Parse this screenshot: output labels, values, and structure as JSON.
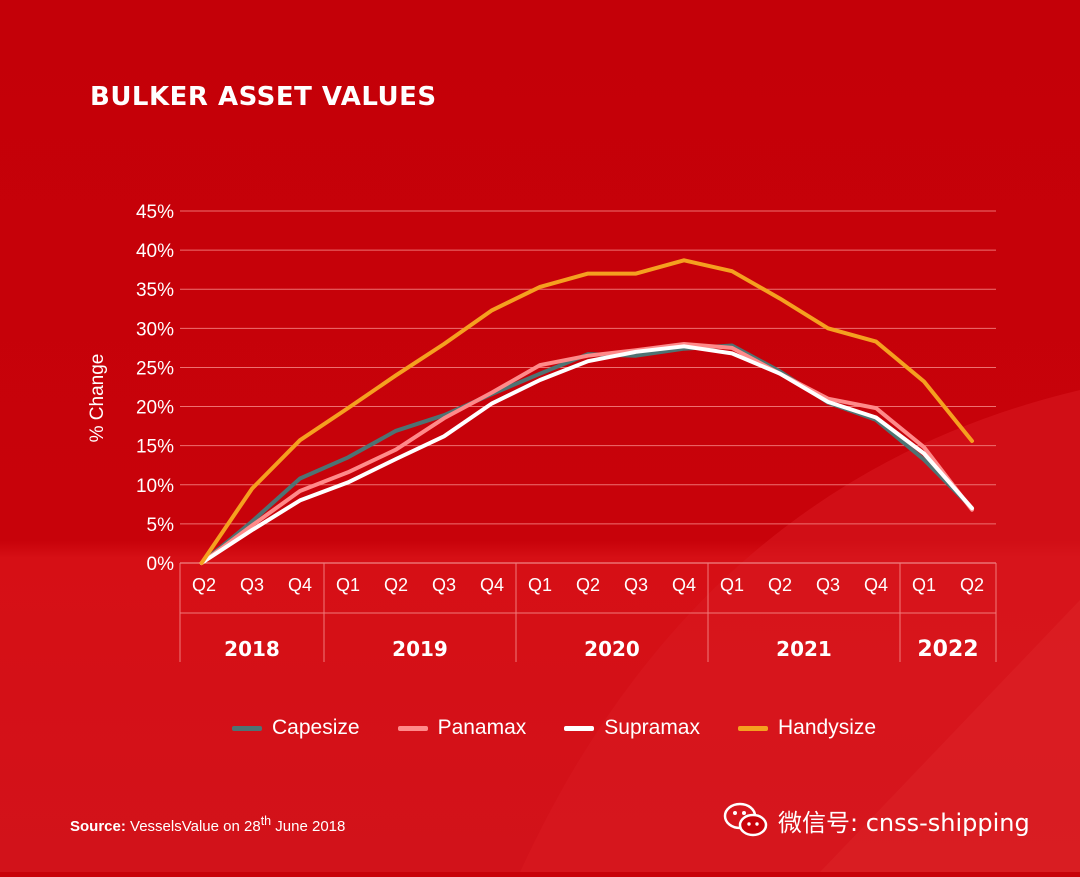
{
  "colors": {
    "background": "#c8020a",
    "grid": "#ee7070",
    "capesize": "#4e7373",
    "panamax": "#ff8a8a",
    "supramax": "#ffffff",
    "handysize": "#f5a01f"
  },
  "source": {
    "label": "Source:",
    "text": "VesselsValue on 28",
    "sup": "th",
    "tail": " June 2018"
  },
  "watermark": {
    "text": "微信号: cnss-shipping",
    "icon": "wechat-icon"
  },
  "chart_data": {
    "type": "line",
    "title": "BULKER ASSET VALUES",
    "ylabel": "% Change",
    "xlabel": "",
    "ylim": [
      0,
      45
    ],
    "ytick_labels": [
      "0%",
      "5%",
      "10%",
      "15%",
      "20%",
      "25%",
      "30%",
      "35%",
      "40%",
      "45%"
    ],
    "categories": [
      "Q2",
      "Q3",
      "Q4",
      "Q1",
      "Q2",
      "Q3",
      "Q4",
      "Q1",
      "Q2",
      "Q3",
      "Q4",
      "Q1",
      "Q2",
      "Q3",
      "Q4",
      "Q1",
      "Q2"
    ],
    "years": [
      {
        "label": "2018",
        "quarters": 3
      },
      {
        "label": "2019",
        "quarters": 4
      },
      {
        "label": "2020",
        "quarters": 4
      },
      {
        "label": "2021",
        "quarters": 4
      },
      {
        "label": "2022",
        "quarters": 2
      }
    ],
    "grid": true,
    "legend_position": "bottom",
    "series": [
      {
        "name": "Capesize",
        "values": [
          0,
          5.3,
          10.8,
          13.5,
          16.9,
          18.9,
          21.6,
          24.2,
          26.7,
          26.5,
          27.4,
          27.8,
          24.5,
          20.5,
          18.3,
          13.2,
          7.0
        ]
      },
      {
        "name": "Panamax",
        "values": [
          0,
          4.8,
          9.2,
          11.6,
          14.5,
          18.5,
          21.8,
          25.3,
          26.5,
          27.2,
          28.0,
          27.5,
          24.2,
          21.0,
          19.8,
          14.8,
          6.8
        ]
      },
      {
        "name": "Supramax",
        "values": [
          0,
          4.2,
          8.0,
          10.3,
          13.3,
          16.2,
          20.4,
          23.4,
          25.8,
          27.0,
          27.7,
          26.8,
          24.2,
          20.6,
          18.6,
          14.0,
          7.0
        ]
      },
      {
        "name": "Handysize",
        "values": [
          0,
          9.5,
          15.7,
          19.8,
          24.0,
          28.0,
          32.3,
          35.3,
          37.0,
          37.0,
          38.7,
          37.3,
          33.8,
          30.0,
          28.3,
          23.2,
          15.6
        ]
      }
    ]
  }
}
